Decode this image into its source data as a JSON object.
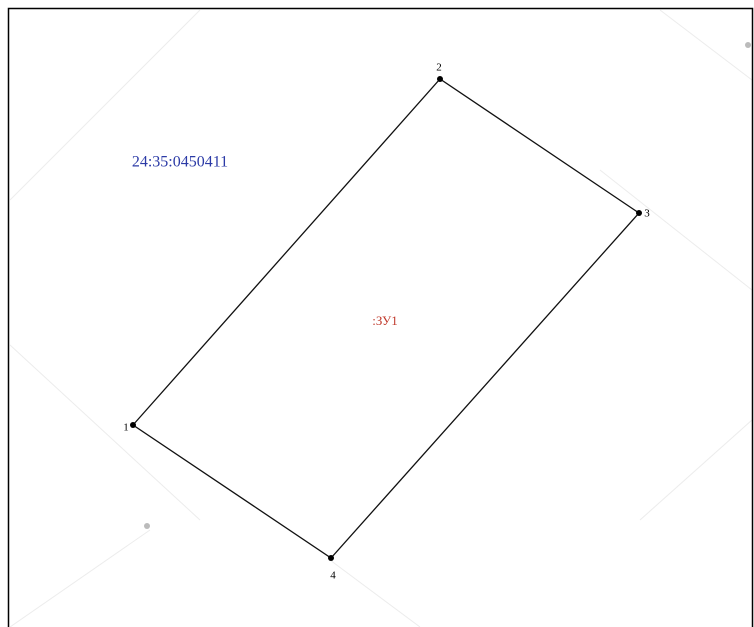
{
  "map": {
    "block_number": "24:35:0450411",
    "parcel_label": ":ЗУ1",
    "points": [
      "1",
      "2",
      "3",
      "4"
    ]
  }
}
